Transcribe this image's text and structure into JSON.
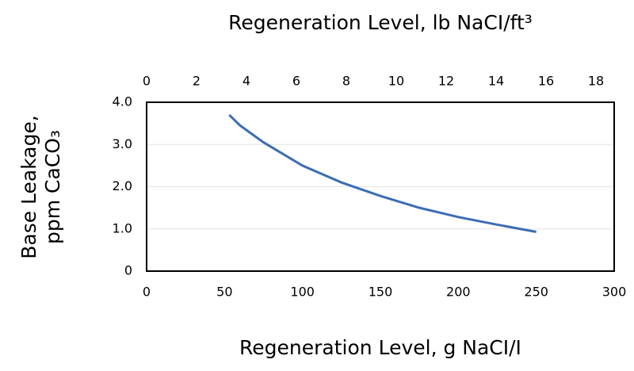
{
  "chart_data": {
    "type": "line",
    "title": "Regeneration Level, lb NaCI/ft³",
    "xlabel": "Regeneration Level, g NaCI/I",
    "ylabel": [
      "Base Leakage,",
      "ppm CaCO₃"
    ],
    "x": [
      53,
      60,
      75,
      100,
      125,
      150,
      175,
      200,
      225,
      250
    ],
    "values": [
      3.7,
      3.45,
      3.05,
      2.5,
      2.1,
      1.78,
      1.5,
      1.28,
      1.1,
      0.93
    ],
    "color": "#3c6db4",
    "xlim": [
      0,
      300
    ],
    "xticks": [
      0,
      50,
      100,
      150,
      200,
      250,
      300
    ],
    "x2lim": [
      0,
      18.73
    ],
    "x2ticks": [
      0,
      2,
      4,
      6,
      8,
      10,
      12,
      14,
      16,
      18
    ],
    "ylim": [
      0,
      4
    ],
    "yticks": [
      0,
      {
        "value": 1,
        "label": "1.0"
      },
      {
        "value": 2,
        "label": "2.0"
      },
      {
        "value": 3,
        "label": "3.0"
      },
      {
        "value": 4,
        "label": "4.0"
      }
    ],
    "grid": true
  }
}
